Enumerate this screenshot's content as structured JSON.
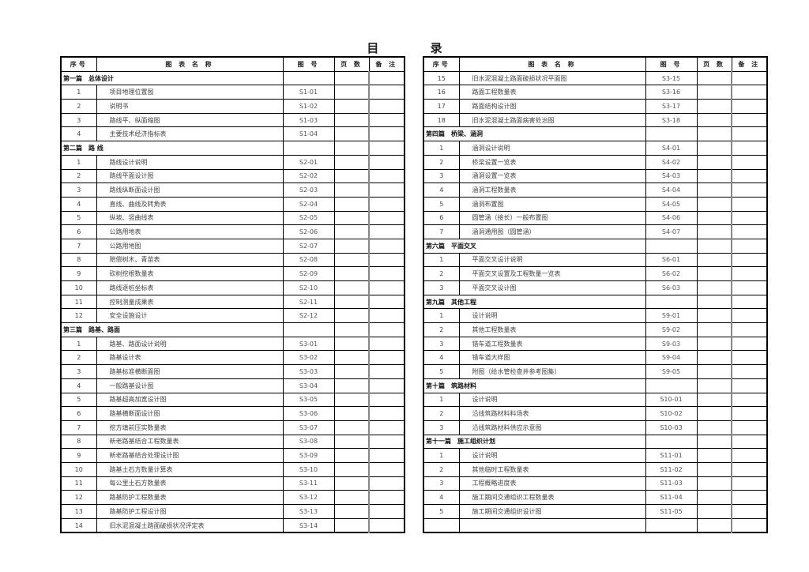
{
  "title": "目 录",
  "headers": {
    "seq": "序号",
    "name": "图 表 名 称",
    "code": "图 号",
    "pages": "页 数",
    "notes": "备 注"
  },
  "left": {
    "rows": [
      {
        "section": "第一篇　总体设计"
      },
      {
        "seq": "1",
        "name": "项目地理位置图",
        "code": "S1-01"
      },
      {
        "seq": "2",
        "name": "说明书",
        "code": "S1-02"
      },
      {
        "seq": "3",
        "name": "路线平、纵面缩图",
        "code": "S1-03"
      },
      {
        "seq": "4",
        "name": "主要技术经济指标表",
        "code": "S1-04"
      },
      {
        "section": "第二篇　路 线"
      },
      {
        "seq": "1",
        "name": "路线设计说明",
        "code": "S2-01"
      },
      {
        "seq": "2",
        "name": "路线平面设计图",
        "code": "S2-02"
      },
      {
        "seq": "3",
        "name": "路线纵断面设计图",
        "code": "S2-03"
      },
      {
        "seq": "4",
        "name": "直线、曲线及转角表",
        "code": "S2-04"
      },
      {
        "seq": "5",
        "name": "纵坡、竖曲线表",
        "code": "S2-05"
      },
      {
        "seq": "6",
        "name": "公路用地表",
        "code": "S2-06"
      },
      {
        "seq": "7",
        "name": "公路用地图",
        "code": "S2-07"
      },
      {
        "seq": "8",
        "name": "赔偿树木、青苗表",
        "code": "S2-08"
      },
      {
        "seq": "9",
        "name": "砍树挖根数量表",
        "code": "S2-09"
      },
      {
        "seq": "10",
        "name": "路线逐桩坐标表",
        "code": "S2-10"
      },
      {
        "seq": "11",
        "name": "控制测量成果表",
        "code": "S2-11"
      },
      {
        "seq": "12",
        "name": "安全设施设计",
        "code": "S2-12"
      },
      {
        "section": "第三篇　路基、路面"
      },
      {
        "seq": "1",
        "name": "路基、路面设计说明",
        "code": "S3-01"
      },
      {
        "seq": "2",
        "name": "路基设计表",
        "code": "S3-02"
      },
      {
        "seq": "3",
        "name": "路基标准横断面图",
        "code": "S3-03"
      },
      {
        "seq": "4",
        "name": "一般路基设计图",
        "code": "S3-04"
      },
      {
        "seq": "5",
        "name": "路基超高加宽设计图",
        "code": "S3-05"
      },
      {
        "seq": "6",
        "name": "路基横断面设计图",
        "code": "S3-06"
      },
      {
        "seq": "7",
        "name": "挖方填前压实数量表",
        "code": "S3-07"
      },
      {
        "seq": "8",
        "name": "新老路基结合工程数量表",
        "code": "S3-08"
      },
      {
        "seq": "9",
        "name": "新老路基结合处理设计图",
        "code": "S3-09"
      },
      {
        "seq": "10",
        "name": "路基土石方数量计算表",
        "code": "S3-10"
      },
      {
        "seq": "11",
        "name": "每公里土石方数量表",
        "code": "S3-11"
      },
      {
        "seq": "12",
        "name": "路基防护工程数量表",
        "code": "S3-12"
      },
      {
        "seq": "13",
        "name": "路基防护工程设计图",
        "code": "S3-13"
      },
      {
        "seq": "14",
        "name": "旧水泥混凝土路面破损状况评定表",
        "code": "S3-14"
      }
    ]
  },
  "right": {
    "rows": [
      {
        "seq": "15",
        "name": "旧水泥混凝土路面破损状况平面图",
        "code": "S3-15"
      },
      {
        "seq": "16",
        "name": "路面工程数量表",
        "code": "S3-16"
      },
      {
        "seq": "17",
        "name": "路面结构设计图",
        "code": "S3-17"
      },
      {
        "seq": "18",
        "name": "旧水泥混凝土路面病害处治图",
        "code": "S3-18"
      },
      {
        "section": "第四篇　桥梁、涵洞"
      },
      {
        "seq": "1",
        "name": "涵洞设计说明",
        "code": "S4-01"
      },
      {
        "seq": "2",
        "name": "桥梁设置一览表",
        "code": "S4-02"
      },
      {
        "seq": "3",
        "name": "涵洞设置一览表",
        "code": "S4-03"
      },
      {
        "seq": "4",
        "name": "涵洞工程数量表",
        "code": "S4-04"
      },
      {
        "seq": "5",
        "name": "涵洞布置图",
        "code": "S4-05"
      },
      {
        "seq": "6",
        "name": "圆管涵（接长）一般布置图",
        "code": "S4-06"
      },
      {
        "seq": "7",
        "name": "涵洞通用图（圆管涵）",
        "code": "S4-07"
      },
      {
        "section": "第六篇　平面交叉"
      },
      {
        "seq": "1",
        "name": "平面交叉设计说明",
        "code": "S6-01"
      },
      {
        "seq": "2",
        "name": "平面交叉设置及工程数量一览表",
        "code": "S6-02"
      },
      {
        "seq": "3",
        "name": "平面交叉设计图",
        "code": "S6-03"
      },
      {
        "section": "第九篇　其他工程"
      },
      {
        "seq": "1",
        "name": "设计说明",
        "code": "S9-01"
      },
      {
        "seq": "2",
        "name": "其他工程数量表",
        "code": "S9-02"
      },
      {
        "seq": "3",
        "name": "错车道工程数量表",
        "code": "S9-03"
      },
      {
        "seq": "4",
        "name": "错车道大样图",
        "code": "S9-04"
      },
      {
        "seq": "5",
        "name": "附图（给水管检查井参考图集）",
        "code": "S9-05"
      },
      {
        "section": "第十篇　筑路材料"
      },
      {
        "seq": "1",
        "name": "设计说明",
        "code": "S10-01"
      },
      {
        "seq": "2",
        "name": "沿线筑路材料料场表",
        "code": "S10-02"
      },
      {
        "seq": "3",
        "name": "沿线筑路材料供应示意图",
        "code": "S10-03"
      },
      {
        "section": "第十一篇　施工组织计划"
      },
      {
        "seq": "1",
        "name": "设计说明",
        "code": "S11-01"
      },
      {
        "seq": "2",
        "name": "其他临时工程数量表",
        "code": "S11-02"
      },
      {
        "seq": "3",
        "name": "工程概略进度表",
        "code": "S11-03"
      },
      {
        "seq": "4",
        "name": "施工期间交通组织工程数量表",
        "code": "S11-04"
      },
      {
        "seq": "5",
        "name": "施工期间交通组织设计图",
        "code": "S11-05"
      },
      {
        "seq": "",
        "name": "",
        "code": ""
      }
    ]
  }
}
